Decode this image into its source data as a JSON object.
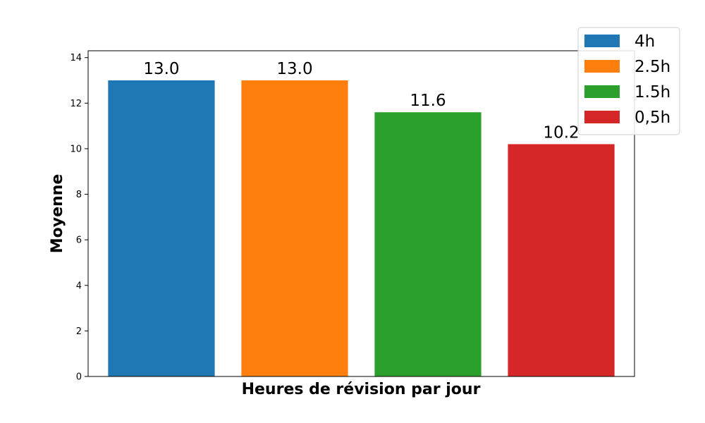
{
  "chart_data": {
    "type": "bar",
    "categories": [
      "4h",
      "2.5h",
      "1.5h",
      "0,5h"
    ],
    "values": [
      13.0,
      13.0,
      11.6,
      10.2
    ],
    "data_labels": [
      "13.0",
      "13.0",
      "11.6",
      "10.2"
    ],
    "colors": [
      "#1f77b4",
      "#ff7f0e",
      "#2ca02c",
      "#d62728"
    ],
    "title": "",
    "xlabel": "Heures de révision par jour",
    "ylabel": "Moyenne",
    "ylim": [
      0,
      14.3
    ],
    "yticks": [
      0,
      2,
      4,
      6,
      8,
      10,
      12,
      14
    ],
    "ytick_labels": [
      "0",
      "2",
      "4",
      "6",
      "8",
      "10",
      "12",
      "14"
    ],
    "grid": false,
    "legend": {
      "placement": "top-right",
      "entries": [
        "4h",
        "2.5h",
        "1.5h",
        "0,5h"
      ]
    }
  }
}
